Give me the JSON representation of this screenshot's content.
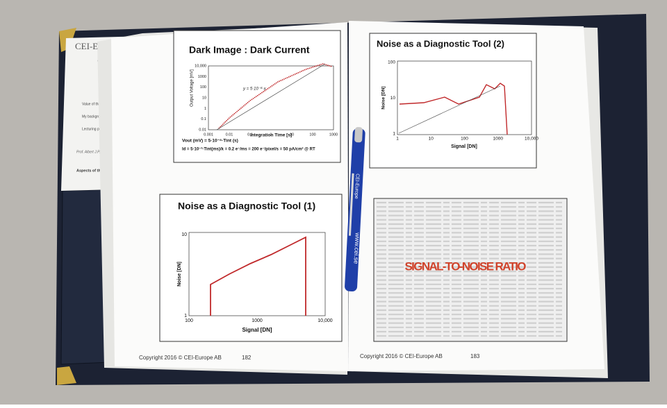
{
  "folder": {
    "brand": "CEI-Europe",
    "tagline": "Continuing Educa",
    "fields": [
      "Value of this course to me:",
      "My background for this course was:",
      "Lecturing pace:"
    ],
    "signature": "Prof. Albert J.P. Theuwissen",
    "aspects": "Aspects of the cou"
  },
  "left_page": {
    "slide_1": {
      "title": "Dark Image : Dark Current",
      "y_label": "Output Voltage [mV]",
      "x_label": "Integration Time [s]",
      "y_ticks": [
        "10,000",
        "1000",
        "100",
        "10",
        "1",
        "0.1",
        "0.01"
      ],
      "x_ticks": [
        "0.001",
        "0.01",
        "0.1",
        "1",
        "10",
        "100",
        "1000"
      ],
      "fit": "y = 5·10⁻⁸·x",
      "formulas": [
        "Vout (mV) = 5·10⁻⁸·Tint (s)",
        "Id = 5·10⁻³·Tint(ms)/k = 0.2 e⁻/ms = 200 e⁻/pixel/s = 50 pA/cm² @ RT"
      ]
    },
    "slide_2": {
      "title": "Noise as a Diagnostic Tool (1)",
      "y_label": "Noise [DN]",
      "x_label": "Signal [DN]",
      "y_ticks": [
        "10",
        "1"
      ],
      "x_ticks": [
        "100",
        "1000",
        "10,000"
      ]
    },
    "footer": "Copyright 2016 © CEI-Europe AB",
    "page_number": 182
  },
  "right_page": {
    "slide_3": {
      "title": "Noise as a Diagnostic Tool (2)",
      "y_label": "Noise [DN]",
      "x_label": "Signal [DN]",
      "y_ticks": [
        "100",
        "10",
        "1"
      ],
      "x_ticks": [
        "1",
        "10",
        "100",
        "1000",
        "10,000"
      ]
    },
    "slide_4": {
      "title": "SIGNAL-TO-NOISE RATIO"
    },
    "footer": "Copyright 2016 © CEI-Europe AB",
    "page_number": 183
  },
  "pen": {
    "brand": "CEI-Europe",
    "url": "www.cei.se"
  }
}
